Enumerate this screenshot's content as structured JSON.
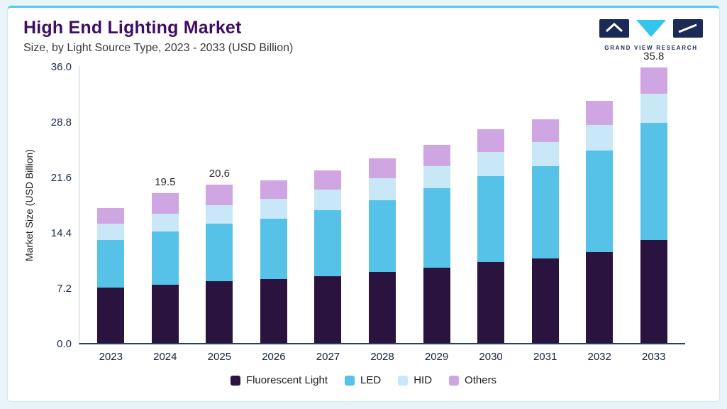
{
  "header": {
    "title": "High End Lighting Market",
    "subtitle": "Size, by Light Source Type, 2023 - 2033 (USD Billion)",
    "logo_text": "GRAND VIEW RESEARCH"
  },
  "chart_data": {
    "type": "bar",
    "stacked": true,
    "title": "High End Lighting Market, Size, by Light Source Type, 2023 - 2033 (USD Billion)",
    "xlabel": "",
    "ylabel": "Market Size (USD Billion)",
    "ylim": [
      0,
      36
    ],
    "grid": false,
    "legend_position": "bottom",
    "yticks": [
      {
        "label": "0.0",
        "value": 0
      },
      {
        "label": "7.2",
        "value": 7.2
      },
      {
        "label": "14.4",
        "value": 14.4
      },
      {
        "label": "21.6",
        "value": 21.6
      },
      {
        "label": "28.8",
        "value": 28.8
      },
      {
        "label": "36.0",
        "value": 36
      }
    ],
    "categories": [
      "2023",
      "2024",
      "2025",
      "2026",
      "2027",
      "2028",
      "2029",
      "2030",
      "2031",
      "2032",
      "2033"
    ],
    "series": [
      {
        "name": "Fluorescent Light",
        "color": "#2b1340",
        "values": [
          7.2,
          7.6,
          8.0,
          8.3,
          8.7,
          9.2,
          9.8,
          10.5,
          11.0,
          11.8,
          13.4
        ]
      },
      {
        "name": "LED",
        "color": "#56c2e8",
        "values": [
          6.2,
          6.9,
          7.5,
          7.9,
          8.6,
          9.4,
          10.3,
          11.2,
          12.0,
          13.2,
          15.2
        ]
      },
      {
        "name": "HID",
        "color": "#c9e8f7",
        "values": [
          2.1,
          2.3,
          2.4,
          2.5,
          2.6,
          2.8,
          2.9,
          3.1,
          3.1,
          3.3,
          3.8
        ]
      },
      {
        "name": "Others",
        "color": "#cfa6e2",
        "values": [
          2.0,
          2.7,
          2.7,
          2.4,
          2.5,
          2.6,
          2.8,
          3.0,
          3.0,
          3.2,
          3.4
        ]
      }
    ],
    "value_labels": {
      "2024": "19.5",
      "2025": "20.6",
      "2033": "35.8"
    },
    "totals": [
      17.5,
      19.5,
      20.6,
      21.1,
      22.4,
      24.0,
      25.8,
      27.8,
      29.1,
      31.5,
      35.8
    ]
  },
  "colors": {
    "accent_line": "#57c8ea",
    "title": "#3f0d63",
    "axis": "#27405e",
    "page_bg": "#e9f3fa",
    "logo_navy": "#1b2a56",
    "logo_cyan": "#35c5ec"
  }
}
